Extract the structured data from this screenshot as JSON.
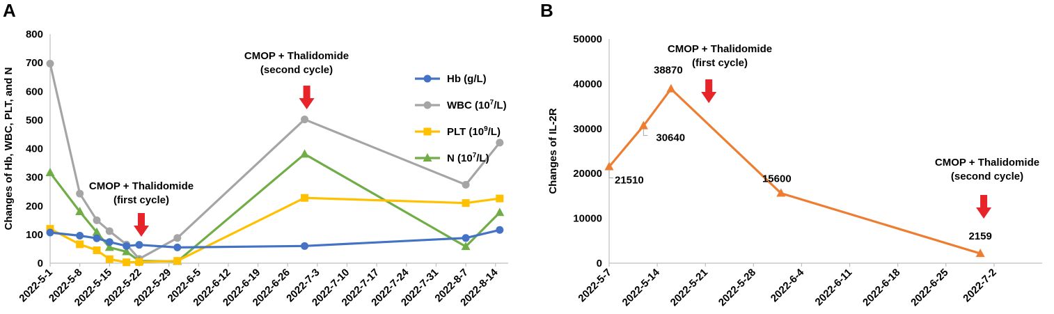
{
  "colors": {
    "hb": "#4472c4",
    "wbc": "#a5a5a5",
    "plt": "#ffc000",
    "n": "#70ad47",
    "il2r": "#ed7d31",
    "arrow": "#e8242b"
  },
  "chart_data": [
    {
      "panel": "A",
      "type": "line",
      "ylabel": "Changes of Hb, WBC, PLT, and N",
      "ylim": [
        0,
        800
      ],
      "yticks": [
        0,
        100,
        200,
        300,
        400,
        500,
        600,
        700,
        800
      ],
      "xlim": [
        0,
        108
      ],
      "xticks": [
        {
          "label": "2022-5-1",
          "day": 0
        },
        {
          "label": "2022-5-8",
          "day": 7
        },
        {
          "label": "2022-5-15",
          "day": 14
        },
        {
          "label": "2022-5-22",
          "day": 21
        },
        {
          "label": "2022-5-29",
          "day": 28
        },
        {
          "label": "2022-6-5",
          "day": 35
        },
        {
          "label": "2022-6-12",
          "day": 42
        },
        {
          "label": "2022-6-19",
          "day": 49
        },
        {
          "label": "2022-6-26",
          "day": 56
        },
        {
          "label": "2022-7-3",
          "day": 63
        },
        {
          "label": "2022-7-10",
          "day": 70
        },
        {
          "label": "2022-7-17",
          "day": 77
        },
        {
          "label": "2022-7-24",
          "day": 84
        },
        {
          "label": "2022-7-31",
          "day": 91
        },
        {
          "label": "2022-8-7",
          "day": 98
        },
        {
          "label": "2022-8-14",
          "day": 105
        }
      ],
      "series": [
        {
          "key": "wbc",
          "name": "WBC (10",
          "sup": "7",
          "unit": "/L)",
          "marker": "circle",
          "x": [
            0,
            7,
            11,
            14,
            18,
            21,
            30,
            60,
            98,
            106
          ],
          "y": [
            697,
            243,
            150,
            112,
            65,
            15,
            88,
            502,
            274,
            421
          ]
        },
        {
          "key": "n",
          "name": "N (10",
          "sup": "7",
          "unit": "/L)",
          "marker": "triangle",
          "x": [
            0,
            7,
            11,
            14,
            18,
            21,
            30,
            60,
            98,
            106
          ],
          "y": [
            316,
            180,
            108,
            55,
            40,
            8,
            6,
            381,
            58,
            177
          ]
        },
        {
          "key": "plt",
          "name": "PLT (10",
          "sup": "9",
          "unit": "/L)",
          "marker": "square",
          "x": [
            0,
            7,
            11,
            14,
            18,
            21,
            30,
            60,
            98,
            106
          ],
          "y": [
            120,
            66,
            45,
            14,
            3,
            4,
            8,
            228,
            210,
            226
          ]
        },
        {
          "key": "hb",
          "name": "Hb (g/L)",
          "sup": "",
          "unit": "",
          "marker": "circle",
          "x": [
            0,
            7,
            11,
            14,
            18,
            21,
            30,
            60,
            98,
            106
          ],
          "y": [
            107,
            96,
            87,
            74,
            60,
            64,
            55,
            60,
            88,
            116
          ]
        }
      ],
      "legend_order": [
        "hb",
        "wbc",
        "plt",
        "n"
      ],
      "annotations": [
        {
          "lines": [
            "CMOP + Thalidomide",
            "(first cycle)"
          ],
          "arrow_day": 21.5
        },
        {
          "lines": [
            "CMOP + Thalidomide",
            "(second cycle)"
          ],
          "arrow_day": 60.5
        }
      ]
    },
    {
      "panel": "B",
      "type": "line",
      "ylabel": "Changes of IL-2R",
      "ylim": [
        0,
        50000
      ],
      "yticks": [
        0,
        10000,
        20000,
        30000,
        40000,
        50000
      ],
      "xlim": [
        0,
        63
      ],
      "xticks": [
        {
          "label": "2022-5-7",
          "day": 0
        },
        {
          "label": "2022-5-14",
          "day": 7
        },
        {
          "label": "2022-5-21",
          "day": 14
        },
        {
          "label": "2022-5-28",
          "day": 21
        },
        {
          "label": "2022-6-4",
          "day": 28
        },
        {
          "label": "2022-6-11",
          "day": 35
        },
        {
          "label": "2022-6-18",
          "day": 42
        },
        {
          "label": "2022-6-25",
          "day": 49
        },
        {
          "label": "2022-7-2",
          "day": 56
        }
      ],
      "series": [
        {
          "key": "il2r",
          "name": "IL-2R",
          "marker": "triangle",
          "x": [
            0,
            5,
            9,
            25,
            54
          ],
          "y": [
            21510,
            30640,
            38870,
            15600,
            2159
          ],
          "labels": [
            "21510",
            "30640",
            "38870",
            "15600",
            "2159"
          ]
        }
      ],
      "annotations": [
        {
          "lines": [
            "CMOP + Thalidomide",
            "(first cycle)"
          ],
          "arrow_day": 14.5
        },
        {
          "lines": [
            "CMOP + Thalidomide",
            "(second cycle)"
          ],
          "arrow_day": 54.5
        }
      ]
    }
  ]
}
